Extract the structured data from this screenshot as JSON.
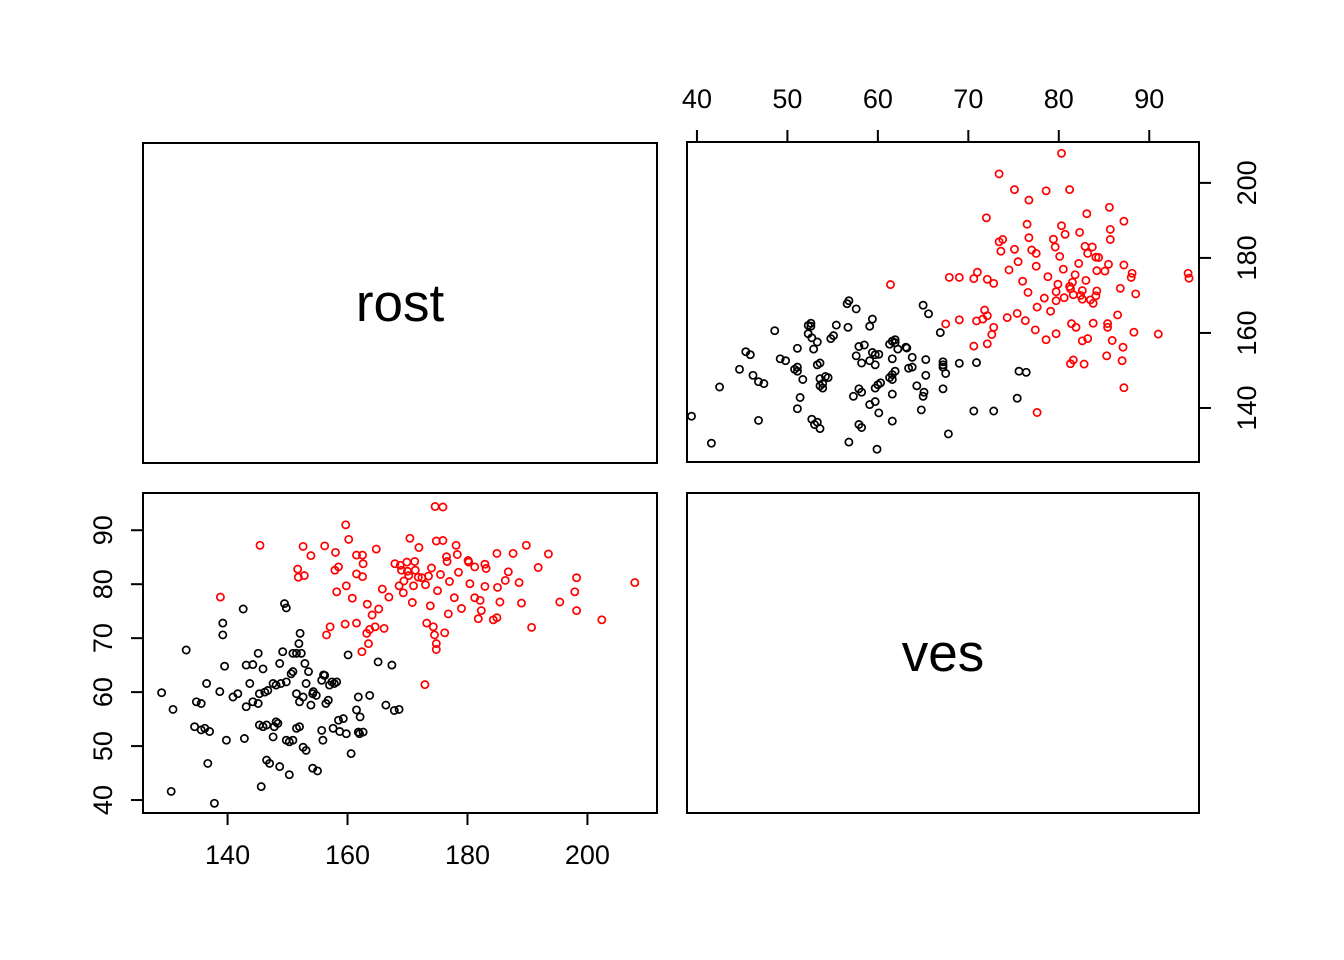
{
  "plot": {
    "kind": "R pairs scatterplot matrix",
    "background": "#ffffff",
    "border_color": "#000000",
    "diagonal_labels": {
      "top_left": "rost",
      "bottom_right": "ves"
    }
  },
  "axes": {
    "top_ves_ticks": [
      40,
      50,
      60,
      70,
      80,
      90
    ],
    "right_rost_ticks": [
      140,
      160,
      180,
      200
    ],
    "left_ves_ticks": [
      40,
      50,
      60,
      70,
      80,
      90
    ],
    "bottom_rost_ticks": [
      140,
      160,
      180,
      200
    ]
  },
  "chart_data": {
    "type": "scatter",
    "title": "",
    "variables": [
      "rost",
      "ves"
    ],
    "layout": "2x2 pairs matrix: top-right panel x=ves y=rost, bottom-left panel x=rost y=ves, diagonal shows variable names",
    "rost_lim": [
      125.9,
      211.6
    ],
    "ves_lim": [
      37.6,
      96.9
    ],
    "grid": false,
    "legend": "none",
    "groups": [
      {
        "name": "group-black",
        "color": "#000000"
      },
      {
        "name": "group-red",
        "color": "#ff0000"
      }
    ],
    "point_style": {
      "shape": "open-circle",
      "radius_px": 3.6,
      "stroke_px": 1.7
    },
    "points_format": [
      "rost",
      "ves",
      "group_index"
    ],
    "points": [
      [
        142.6,
        75.4,
        0
      ],
      [
        149.5,
        76.4,
        0
      ],
      [
        149.8,
        75.6,
        0
      ],
      [
        139.2,
        72.8,
        0
      ],
      [
        139.2,
        70.6,
        0
      ],
      [
        133.1,
        67.8,
        0
      ],
      [
        145.1,
        67.2,
        0
      ],
      [
        149.2,
        67.5,
        0
      ],
      [
        151.5,
        67.2,
        0
      ],
      [
        152.3,
        67.2,
        0
      ],
      [
        152.1,
        70.9,
        0
      ],
      [
        151.9,
        69.0,
        0
      ],
      [
        150.9,
        67.2,
        0
      ],
      [
        139.5,
        64.8,
        0
      ],
      [
        143.1,
        65.0,
        0
      ],
      [
        144.2,
        65.1,
        0
      ],
      [
        145.9,
        64.3,
        0
      ],
      [
        148.7,
        65.3,
        0
      ],
      [
        150.9,
        63.8,
        0
      ],
      [
        152.9,
        65.3,
        0
      ],
      [
        153.5,
        63.8,
        0
      ],
      [
        156.0,
        63.2,
        0
      ],
      [
        160.1,
        66.9,
        0
      ],
      [
        165.1,
        65.6,
        0
      ],
      [
        167.4,
        65.0,
        0
      ],
      [
        156.2,
        63.1,
        0
      ],
      [
        150.6,
        63.4,
        0
      ],
      [
        129.0,
        59.9,
        0
      ],
      [
        130.9,
        56.8,
        0
      ],
      [
        134.8,
        58.2,
        0
      ],
      [
        135.6,
        57.9,
        0
      ],
      [
        136.5,
        61.6,
        0
      ],
      [
        138.7,
        60.1,
        0
      ],
      [
        140.9,
        59.1,
        0
      ],
      [
        141.7,
        59.7,
        0
      ],
      [
        143.1,
        57.3,
        0
      ],
      [
        143.7,
        61.6,
        0
      ],
      [
        144.2,
        58.2,
        0
      ],
      [
        145.1,
        57.9,
        0
      ],
      [
        145.3,
        59.7,
        0
      ],
      [
        146.2,
        60.0,
        0
      ],
      [
        146.7,
        60.3,
        0
      ],
      [
        147.6,
        61.6,
        0
      ],
      [
        148.1,
        61.3,
        0
      ],
      [
        148.9,
        61.6,
        0
      ],
      [
        149.8,
        61.9,
        0
      ],
      [
        151.5,
        59.7,
        0
      ],
      [
        152.0,
        58.2,
        0
      ],
      [
        152.6,
        59.1,
        0
      ],
      [
        153.1,
        61.6,
        0
      ],
      [
        153.9,
        57.6,
        0
      ],
      [
        154.2,
        59.7,
        0
      ],
      [
        154.8,
        59.4,
        0
      ],
      [
        156.4,
        57.9,
        0
      ],
      [
        157.0,
        61.3,
        0
      ],
      [
        157.8,
        61.6,
        0
      ],
      [
        155.7,
        62.2,
        0
      ],
      [
        157.4,
        61.9,
        0
      ],
      [
        158.2,
        61.9,
        0
      ],
      [
        154.3,
        60.1,
        0
      ],
      [
        156.8,
        58.5,
        0
      ],
      [
        161.8,
        59.1,
        0
      ],
      [
        163.7,
        59.4,
        0
      ],
      [
        161.5,
        56.7,
        0
      ],
      [
        162.1,
        55.4,
        0
      ],
      [
        166.4,
        57.6,
        0
      ],
      [
        168.6,
        56.8,
        0
      ],
      [
        167.8,
        56.6,
        0
      ],
      [
        159.3,
        55.1,
        0
      ],
      [
        158.5,
        54.8,
        0
      ],
      [
        134.5,
        53.6,
        0
      ],
      [
        135.6,
        53.0,
        0
      ],
      [
        136.2,
        53.3,
        0
      ],
      [
        137.0,
        52.7,
        0
      ],
      [
        139.8,
        51.1,
        0
      ],
      [
        142.8,
        51.4,
        0
      ],
      [
        145.3,
        53.9,
        0
      ],
      [
        145.9,
        53.6,
        0
      ],
      [
        146.5,
        53.9,
        0
      ],
      [
        147.6,
        51.7,
        0
      ],
      [
        147.8,
        53.6,
        0
      ],
      [
        148.1,
        54.5,
        0
      ],
      [
        148.4,
        54.2,
        0
      ],
      [
        149.8,
        51.1,
        0
      ],
      [
        150.3,
        50.8,
        0
      ],
      [
        150.9,
        51.1,
        0
      ],
      [
        151.5,
        53.3,
        0
      ],
      [
        152.0,
        53.6,
        0
      ],
      [
        152.6,
        49.8,
        0
      ],
      [
        153.1,
        49.2,
        0
      ],
      [
        155.9,
        51.1,
        0
      ],
      [
        158.7,
        52.7,
        0
      ],
      [
        155.7,
        52.9,
        0
      ],
      [
        157.6,
        53.3,
        0
      ],
      [
        161.8,
        52.6,
        0
      ],
      [
        159.8,
        52.3,
        0
      ],
      [
        162.0,
        52.3,
        0
      ],
      [
        162.6,
        52.6,
        0
      ],
      [
        160.6,
        48.6,
        0
      ],
      [
        136.7,
        46.8,
        0
      ],
      [
        146.5,
        47.4,
        0
      ],
      [
        147.0,
        46.8,
        0
      ],
      [
        148.7,
        46.2,
        0
      ],
      [
        150.3,
        44.7,
        0
      ],
      [
        154.2,
        45.9,
        0
      ],
      [
        155.0,
        45.4,
        0
      ],
      [
        130.6,
        41.6,
        0
      ],
      [
        137.8,
        39.4,
        0
      ],
      [
        145.6,
        42.5,
        0
      ],
      [
        145.4,
        87.2,
        1
      ],
      [
        138.8,
        77.6,
        1
      ],
      [
        152.6,
        87.0,
        1
      ],
      [
        153.9,
        85.3,
        1
      ],
      [
        156.2,
        87.1,
        1
      ],
      [
        158.0,
        85.9,
        1
      ],
      [
        159.7,
        91.0,
        1
      ],
      [
        160.2,
        88.3,
        1
      ],
      [
        158.5,
        83.2,
        1
      ],
      [
        161.5,
        85.4,
        1
      ],
      [
        162.5,
        85.4,
        1
      ],
      [
        164.8,
        86.5,
        1
      ],
      [
        162.6,
        83.8,
        1
      ],
      [
        151.7,
        82.8,
        1
      ],
      [
        151.8,
        81.3,
        1
      ],
      [
        152.8,
        81.6,
        1
      ],
      [
        157.9,
        82.6,
        1
      ],
      [
        161.5,
        81.9,
        1
      ],
      [
        162.5,
        81.4,
        1
      ],
      [
        159.8,
        79.7,
        1
      ],
      [
        165.8,
        79.1,
        1
      ],
      [
        158.2,
        78.6,
        1
      ],
      [
        160.8,
        77.4,
        1
      ],
      [
        163.3,
        76.3,
        1
      ],
      [
        165.2,
        75.4,
        1
      ],
      [
        166.9,
        77.6,
        1
      ],
      [
        164.1,
        74.3,
        1
      ],
      [
        157.1,
        72.1,
        1
      ],
      [
        159.6,
        72.6,
        1
      ],
      [
        161.5,
        72.8,
        1
      ],
      [
        156.5,
        70.6,
        1
      ],
      [
        163.2,
        70.9,
        1
      ],
      [
        163.7,
        71.6,
        1
      ],
      [
        164.6,
        72.1,
        1
      ],
      [
        166.1,
        71.8,
        1
      ],
      [
        163.5,
        69.0,
        1
      ],
      [
        162.4,
        67.5,
        1
      ],
      [
        173.2,
        72.8,
        1
      ],
      [
        174.3,
        72.1,
        1
      ],
      [
        174.5,
        70.6,
        1
      ],
      [
        176.2,
        71.0,
        1
      ],
      [
        174.8,
        69.0,
        1
      ],
      [
        172.9,
        61.4,
        1
      ],
      [
        174.6,
        94.4,
        1
      ],
      [
        175.9,
        94.3,
        1
      ],
      [
        170.4,
        88.5,
        1
      ],
      [
        174.8,
        88.0,
        1
      ],
      [
        175.9,
        88.1,
        1
      ],
      [
        171.9,
        86.8,
        1
      ],
      [
        178.1,
        87.2,
        1
      ],
      [
        178.3,
        85.5,
        1
      ],
      [
        176.6,
        84.2,
        1
      ],
      [
        184.9,
        85.7,
        1
      ],
      [
        187.6,
        85.7,
        1
      ],
      [
        189.8,
        87.2,
        1
      ],
      [
        193.5,
        85.6,
        1
      ],
      [
        180.2,
        84.1,
        1
      ],
      [
        181.2,
        83.2,
        1
      ],
      [
        183.1,
        82.9,
        1
      ],
      [
        169.9,
        84.1,
        1
      ],
      [
        171.2,
        84.2,
        1
      ],
      [
        169.0,
        82.6,
        1
      ],
      [
        170.2,
        81.6,
        1
      ],
      [
        171.8,
        81.3,
        1
      ],
      [
        173.5,
        81.5,
        1
      ],
      [
        191.8,
        83.1,
        1
      ],
      [
        198.2,
        81.2,
        1
      ],
      [
        197.9,
        78.6,
        1
      ],
      [
        207.9,
        80.3,
        1
      ],
      [
        185.0,
        79.4,
        1
      ],
      [
        186.3,
        80.7,
        1
      ],
      [
        188.6,
        80.3,
        1
      ],
      [
        189.0,
        76.5,
        1
      ],
      [
        195.4,
        76.7,
        1
      ],
      [
        198.2,
        75.1,
        1
      ],
      [
        202.4,
        73.4,
        1
      ],
      [
        190.7,
        72.0,
        1
      ],
      [
        180.1,
        84.4,
        1
      ],
      [
        182.9,
        83.7,
        1
      ],
      [
        186.8,
        82.3,
        1
      ],
      [
        180.4,
        80.1,
        1
      ],
      [
        182.9,
        79.6,
        1
      ],
      [
        181.2,
        77.5,
        1
      ],
      [
        182.1,
        77.0,
        1
      ],
      [
        185.4,
        76.7,
        1
      ],
      [
        181.8,
        73.6,
        1
      ],
      [
        184.3,
        73.4,
        1
      ],
      [
        184.9,
        73.8,
        1
      ],
      [
        182.3,
        75.1,
        1
      ],
      [
        168.6,
        79.7,
        1
      ],
      [
        169.3,
        78.4,
        1
      ],
      [
        170.8,
        76.6,
        1
      ],
      [
        174.8,
        67.9,
        1
      ],
      [
        168.8,
        83.5,
        1
      ],
      [
        170.0,
        82.4,
        1
      ],
      [
        171.3,
        82.6,
        1
      ],
      [
        172.4,
        81.2,
        1
      ],
      [
        169.4,
        80.6,
        1
      ],
      [
        171.0,
        79.7,
        1
      ],
      [
        173.0,
        79.9,
        1
      ],
      [
        167.9,
        83.8,
        1
      ],
      [
        176.5,
        85.1,
        1
      ],
      [
        174.0,
        83.0,
        1
      ],
      [
        175.5,
        81.8,
        1
      ],
      [
        177.0,
        80.5,
        1
      ],
      [
        178.5,
        82.2,
        1
      ],
      [
        175.0,
        78.8,
        1
      ],
      [
        177.8,
        77.5,
        1
      ],
      [
        173.8,
        76.0,
        1
      ],
      [
        179.0,
        75.5,
        1
      ],
      [
        176.8,
        74.5,
        1
      ]
    ]
  }
}
